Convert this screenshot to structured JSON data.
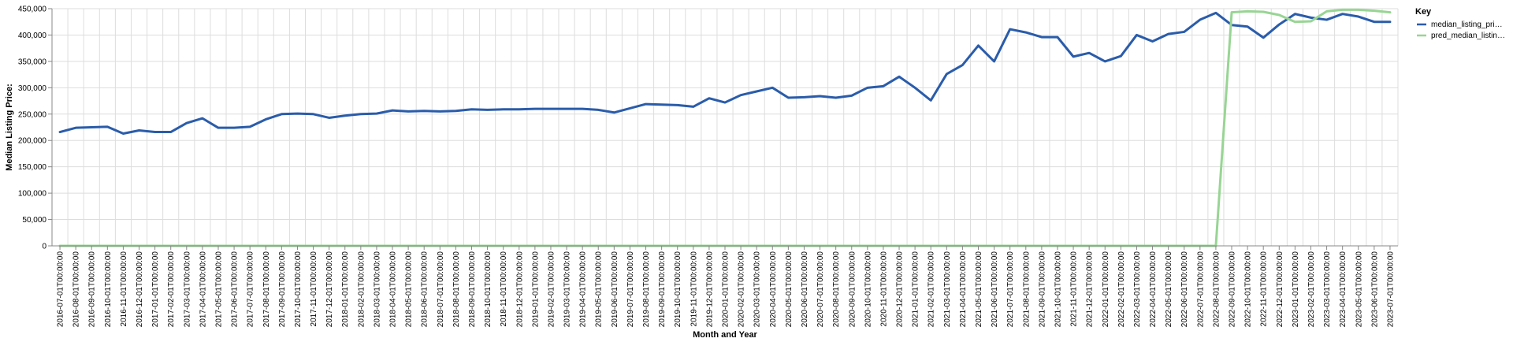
{
  "chart_data": {
    "type": "line",
    "xlabel": "Month and Year",
    "ylabel": "Median Listing Price:",
    "ylim": [
      0,
      450000
    ],
    "yticks": [
      "0",
      "50,000",
      "100,000",
      "150,000",
      "200,000",
      "250,000",
      "300,000",
      "350,000",
      "400,000",
      "450,000"
    ],
    "grid": true,
    "legend": {
      "title": "Key",
      "placement": "top-right"
    },
    "x": [
      "2016-07-01T00:00:00",
      "2016-08-01T00:00:00",
      "2016-09-01T00:00:00",
      "2016-10-01T00:00:00",
      "2016-11-01T00:00:00",
      "2016-12-01T00:00:00",
      "2017-01-01T00:00:00",
      "2017-02-01T00:00:00",
      "2017-03-01T00:00:00",
      "2017-04-01T00:00:00",
      "2017-05-01T00:00:00",
      "2017-06-01T00:00:00",
      "2017-07-01T00:00:00",
      "2017-08-01T00:00:00",
      "2017-09-01T00:00:00",
      "2017-10-01T00:00:00",
      "2017-11-01T00:00:00",
      "2017-12-01T00:00:00",
      "2018-01-01T00:00:00",
      "2018-02-01T00:00:00",
      "2018-03-01T00:00:00",
      "2018-04-01T00:00:00",
      "2018-05-01T00:00:00",
      "2018-06-01T00:00:00",
      "2018-07-01T00:00:00",
      "2018-08-01T00:00:00",
      "2018-09-01T00:00:00",
      "2018-10-01T00:00:00",
      "2018-11-01T00:00:00",
      "2018-12-01T00:00:00",
      "2019-01-01T00:00:00",
      "2019-02-01T00:00:00",
      "2019-03-01T00:00:00",
      "2019-04-01T00:00:00",
      "2019-05-01T00:00:00",
      "2019-06-01T00:00:00",
      "2019-07-01T00:00:00",
      "2019-08-01T00:00:00",
      "2019-09-01T00:00:00",
      "2019-10-01T00:00:00",
      "2019-11-01T00:00:00",
      "2019-12-01T00:00:00",
      "2020-01-01T00:00:00",
      "2020-02-01T00:00:00",
      "2020-03-01T00:00:00",
      "2020-04-01T00:00:00",
      "2020-05-01T00:00:00",
      "2020-06-01T00:00:00",
      "2020-07-01T00:00:00",
      "2020-08-01T00:00:00",
      "2020-09-01T00:00:00",
      "2020-10-01T00:00:00",
      "2020-11-01T00:00:00",
      "2020-12-01T00:00:00",
      "2021-01-01T00:00:00",
      "2021-02-01T00:00:00",
      "2021-03-01T00:00:00",
      "2021-04-01T00:00:00",
      "2021-05-01T00:00:00",
      "2021-06-01T00:00:00",
      "2021-07-01T00:00:00",
      "2021-08-01T00:00:00",
      "2021-09-01T00:00:00",
      "2021-10-01T00:00:00",
      "2021-11-01T00:00:00",
      "2021-12-01T00:00:00",
      "2022-01-01T00:00:00",
      "2022-02-01T00:00:00",
      "2022-03-01T00:00:00",
      "2022-04-01T00:00:00",
      "2022-05-01T00:00:00",
      "2022-06-01T00:00:00",
      "2022-07-01T00:00:00",
      "2022-08-01T00:00:00",
      "2022-09-01T00:00:00",
      "2022-10-01T00:00:00",
      "2022-11-01T00:00:00",
      "2022-12-01T00:00:00",
      "2023-01-01T00:00:00",
      "2023-02-01T00:00:00",
      "2023-03-01T00:00:00",
      "2023-04-01T00:00:00",
      "2023-05-01T00:00:00",
      "2023-06-01T00:00:00",
      "2023-07-01T00:00:00"
    ],
    "series": [
      {
        "name": "median_listing_pri…",
        "color": "#2a5caa",
        "values": [
          216000,
          224000,
          225000,
          226000,
          213000,
          219000,
          216000,
          216000,
          233000,
          242000,
          224000,
          224000,
          226000,
          240000,
          250000,
          251000,
          250000,
          243000,
          247000,
          250000,
          251000,
          257000,
          255000,
          256000,
          255000,
          256000,
          259000,
          258000,
          259000,
          259000,
          260000,
          260000,
          260000,
          260000,
          258000,
          253000,
          261000,
          269000,
          268000,
          267000,
          264000,
          280000,
          272000,
          286000,
          293000,
          300000,
          281000,
          282000,
          284000,
          281000,
          285000,
          300000,
          303000,
          321000,
          300000,
          276000,
          326000,
          343000,
          380000,
          350000,
          411000,
          405000,
          396000,
          396000,
          359000,
          366000,
          350000,
          360000,
          400000,
          388000,
          402000,
          406000,
          429000,
          442000,
          419000,
          416000,
          395000,
          420000,
          440000,
          433000,
          429000,
          440000,
          435000,
          425000,
          425000
        ]
      },
      {
        "name": "pred_median_listin…",
        "color": "#98d594",
        "values": [
          0,
          0,
          0,
          0,
          0,
          0,
          0,
          0,
          0,
          0,
          0,
          0,
          0,
          0,
          0,
          0,
          0,
          0,
          0,
          0,
          0,
          0,
          0,
          0,
          0,
          0,
          0,
          0,
          0,
          0,
          0,
          0,
          0,
          0,
          0,
          0,
          0,
          0,
          0,
          0,
          0,
          0,
          0,
          0,
          0,
          0,
          0,
          0,
          0,
          0,
          0,
          0,
          0,
          0,
          0,
          0,
          0,
          0,
          0,
          0,
          0,
          0,
          0,
          0,
          0,
          0,
          0,
          0,
          0,
          0,
          0,
          0,
          0,
          0,
          443000,
          445000,
          444000,
          438000,
          425000,
          426000,
          445000,
          448000,
          448000,
          446000,
          443000
        ]
      }
    ]
  }
}
